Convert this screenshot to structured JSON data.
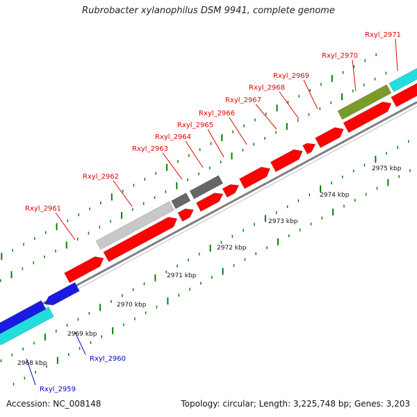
{
  "header": {
    "title": "Rubrobacter xylanophilus DSM 9941, complete genome"
  },
  "footer": {
    "accession": "Accession: NC_008148",
    "topology": "Topology: circular; Length: 3,225,748 bp; Genes: 3,203"
  },
  "colors": {
    "cds": "#ff0000",
    "rna_light": "#c8c8c8",
    "rna_dark": "#666666",
    "olive": "#7a9a2a",
    "cyan": "#22dddd",
    "blue": "#1a1ae0",
    "backbone": "#7f7f7f",
    "ticks": "#008000",
    "label_red": "#dd0000",
    "label_blue": "#0000cc"
  },
  "scale_labels": [
    "2968 kbp",
    "2969 kbp",
    "2970 kbp",
    "2971 kbp",
    "2972 kbp",
    "2973 kbp",
    "2974 kbp",
    "2975 kbp"
  ],
  "features": [
    {
      "id": "Rxyl_2959",
      "type": "cyan",
      "strand": "reverse"
    },
    {
      "id": "Rxyl_2960",
      "type": "blue",
      "strand": "reverse"
    },
    {
      "id": "Rxyl_2961",
      "type": "cds",
      "strand": "forward"
    },
    {
      "id": "Rxyl_2962",
      "type": "cds",
      "strand": "forward"
    },
    {
      "id": "Rxyl_2963",
      "type": "cds",
      "strand": "forward"
    },
    {
      "id": "Rxyl_2964",
      "type": "cds",
      "strand": "forward"
    },
    {
      "id": "Rxyl_2965",
      "type": "cds",
      "strand": "forward"
    },
    {
      "id": "Rxyl_2966",
      "type": "cds",
      "strand": "forward"
    },
    {
      "id": "Rxyl_2967",
      "type": "cds",
      "strand": "forward"
    },
    {
      "id": "Rxyl_2968",
      "type": "cds",
      "strand": "forward"
    },
    {
      "id": "Rxyl_2969",
      "type": "cds",
      "strand": "forward"
    },
    {
      "id": "Rxyl_2970",
      "type": "cds",
      "strand": "forward"
    },
    {
      "id": "Rxyl_2971",
      "type": "cds",
      "strand": "forward"
    }
  ]
}
